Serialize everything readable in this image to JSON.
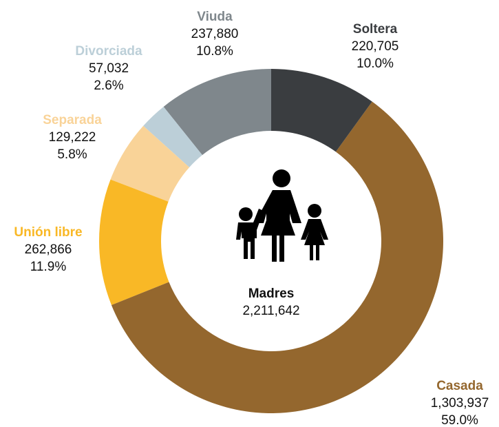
{
  "chart_data": {
    "type": "donut",
    "categories": [
      "Soltera",
      "Casada",
      "Unión libre",
      "Separada",
      "Divorciada",
      "Viuda"
    ],
    "values": [
      220705,
      1303937,
      262866,
      129222,
      57032,
      237880
    ],
    "value_labels": [
      "220,705",
      "1,303,937",
      "262,866",
      "129,222",
      "57,032",
      "237,880"
    ],
    "percent_labels": [
      "10.0%",
      "59.0%",
      "11.9%",
      "5.8%",
      "2.6%",
      "10.8%"
    ],
    "colors": [
      "#3a3d40",
      "#94672e",
      "#f9b826",
      "#f9d398",
      "#bccfd8",
      "#7f878c"
    ],
    "center_label": "Madres",
    "total_label": "2,211,642"
  }
}
